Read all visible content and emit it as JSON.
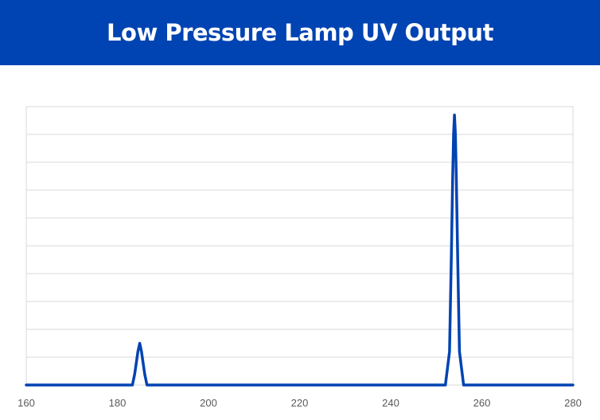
{
  "header": {
    "title": "Low Pressure Lamp UV Output",
    "background_color": "#0043b2",
    "text_color": "#ffffff"
  },
  "chart_data": {
    "type": "line",
    "title": "Low Pressure Lamp UV Output",
    "xlabel": "",
    "ylabel": "",
    "xlim": [
      160,
      280
    ],
    "ylim": [
      0,
      1
    ],
    "x_ticks": [
      160,
      180,
      200,
      220,
      240,
      260,
      280
    ],
    "y_tick_labels_shown": false,
    "grid": true,
    "legend": "none",
    "line_color": "#0043b2",
    "series": [
      {
        "x": [
          160,
          183.3,
          183.8,
          184.5,
          184.9,
          185.3,
          186,
          186.5,
          252,
          252.9,
          253.3,
          253.6,
          253.8,
          254,
          254.2,
          254.4,
          254.7,
          255.1,
          256,
          280
        ],
        "values": [
          0,
          0,
          0.04,
          0.12,
          0.15,
          0.12,
          0.04,
          0,
          0,
          0.12,
          0.45,
          0.75,
          0.9,
          0.97,
          0.9,
          0.75,
          0.45,
          0.12,
          0,
          0
        ]
      }
    ]
  }
}
